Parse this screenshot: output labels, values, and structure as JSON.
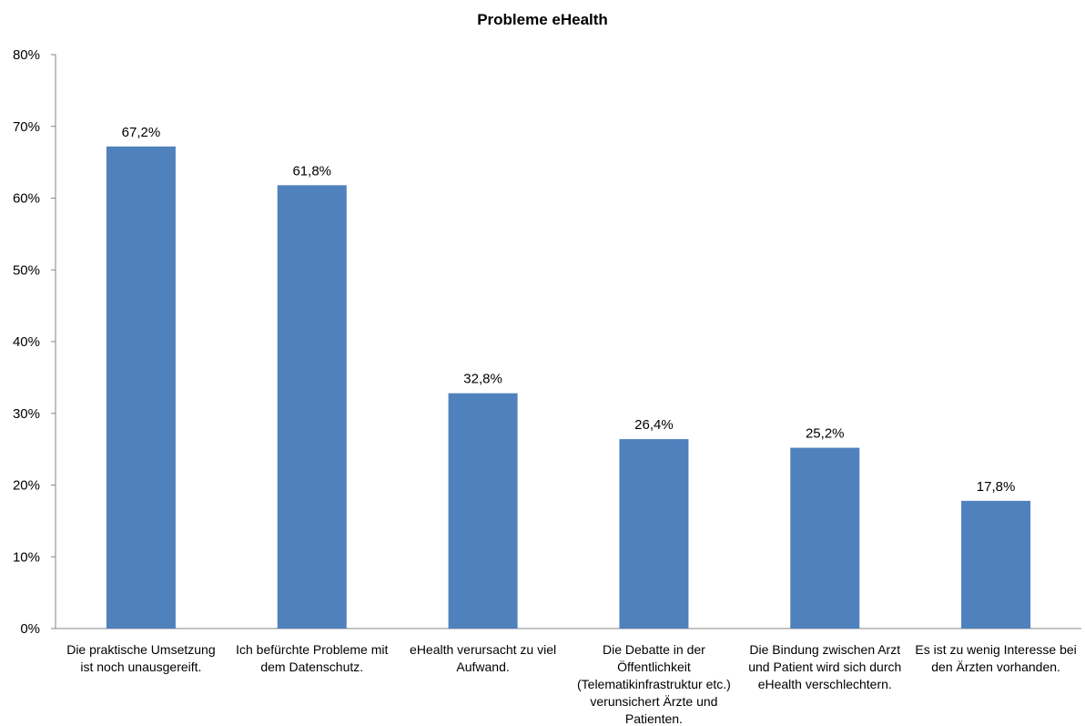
{
  "chart_data": {
    "type": "bar",
    "title": "Probleme eHealth",
    "xlabel": "",
    "ylabel": "",
    "ylim": [
      0,
      80
    ],
    "yticks": [
      "0%",
      "10%",
      "20%",
      "30%",
      "40%",
      "50%",
      "60%",
      "70%",
      "80%"
    ],
    "grid": false,
    "legend": "none",
    "bar_color": "#4f81bd",
    "categories": [
      [
        "Die praktische Umsetzung",
        "ist noch unausgereift."
      ],
      [
        "Ich befürchte Probleme mit",
        "dem Datenschutz."
      ],
      [
        "eHealth verursacht zu viel",
        "Aufwand."
      ],
      [
        "Die Debatte in der",
        "Öffentlichkeit",
        "(Telematikinfrastruktur etc.)",
        "verunsichert Ärzte und",
        "Patienten."
      ],
      [
        "Die Bindung zwischen Arzt",
        "und Patient wird sich durch",
        "eHealth verschlechtern."
      ],
      [
        "Es ist zu wenig Interesse bei",
        "den Ärzten vorhanden."
      ]
    ],
    "values": [
      67.2,
      61.8,
      32.8,
      26.4,
      25.2,
      17.8
    ],
    "data_labels": [
      "67,2%",
      "61,8%",
      "32,8%",
      "26,4%",
      "25,2%",
      "17,8%"
    ]
  }
}
